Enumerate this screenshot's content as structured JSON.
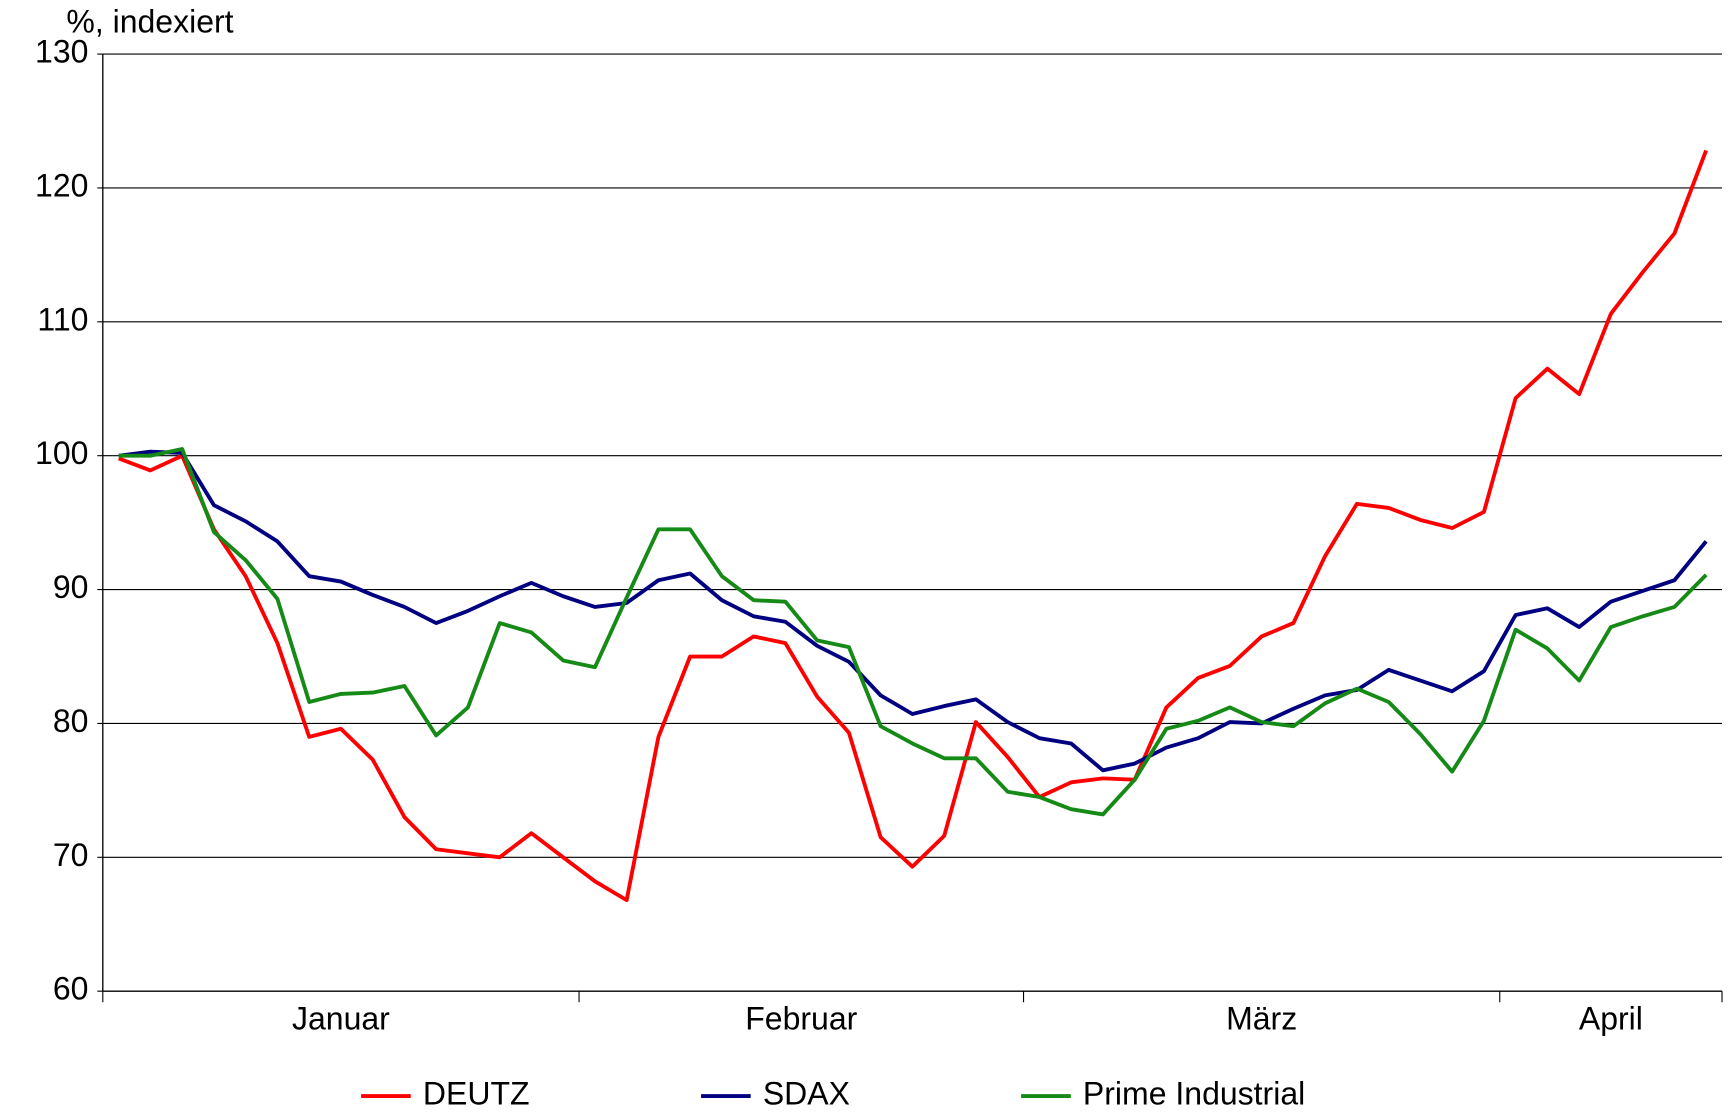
{
  "chart_data": {
    "type": "line",
    "ylabel": "%, indexiert",
    "categories": [
      "Januar",
      "Februar",
      "März",
      "April"
    ],
    "ylim": [
      60,
      130
    ],
    "yticks": [
      60,
      70,
      80,
      90,
      100,
      110,
      120,
      130
    ],
    "grid": true,
    "legend": "bottom",
    "series": [
      {
        "name": "DEUTZ",
        "color": "#ff0000",
        "values": [
          [
            99.8,
            98.9,
            100,
            94.5,
            91,
            86,
            79,
            79.6,
            77.3,
            73,
            70.6,
            70.3,
            70,
            71.8,
            70
          ],
          [
            68.2,
            66.8,
            79,
            85,
            85,
            86.5,
            86,
            82,
            79.3,
            71.5,
            69.3,
            71.6,
            80.1,
            77.5
          ],
          [
            74.5,
            75.6,
            75.9,
            75.8,
            81.2,
            83.4,
            84.3,
            86.5,
            87.5,
            92.5,
            96.4,
            96.1,
            95.2,
            94.6,
            95.8
          ],
          [
            104.3,
            106.5,
            104.6,
            110.6,
            113.7,
            116.6,
            122.8
          ]
        ]
      },
      {
        "name": "SDAX",
        "color": "#000080",
        "values": [
          [
            100,
            100.3,
            100.2,
            96.3,
            95.1,
            93.6,
            91,
            90.6,
            89.6,
            88.7,
            87.5,
            88.4,
            89.5,
            90.5,
            89.5
          ],
          [
            88.7,
            89,
            90.7,
            91.2,
            89.2,
            88,
            87.6,
            85.8,
            84.6,
            82.1,
            80.7,
            81.3,
            81.8,
            80.1
          ],
          [
            78.9,
            78.5,
            76.5,
            77,
            78.2,
            78.9,
            80.1,
            80,
            81.1,
            82.1,
            82.5,
            84,
            83.2,
            82.4,
            83.9
          ],
          [
            88.1,
            88.6,
            87.2,
            89.1,
            89.9,
            90.7,
            93.6
          ]
        ]
      },
      {
        "name": "Prime Industrial",
        "color": "#168a16",
        "values": [
          [
            100,
            100,
            100.5,
            94.3,
            92.2,
            89.3,
            81.6,
            82.2,
            82.3,
            82.8,
            79.1,
            81.2,
            87.5,
            86.8,
            84.7
          ],
          [
            84.2,
            89.4,
            94.5,
            94.5,
            91,
            89.2,
            89.1,
            86.2,
            85.7,
            79.8,
            78.5,
            77.4,
            77.4,
            74.9
          ],
          [
            74.5,
            73.6,
            73.2,
            75.8,
            79.6,
            80.2,
            81.2,
            80.1,
            79.8,
            81.5,
            82.6,
            81.6,
            79.2,
            76.4,
            80.2
          ],
          [
            87,
            85.6,
            83.2,
            87.2,
            88,
            88.7,
            91.1
          ]
        ]
      }
    ]
  }
}
